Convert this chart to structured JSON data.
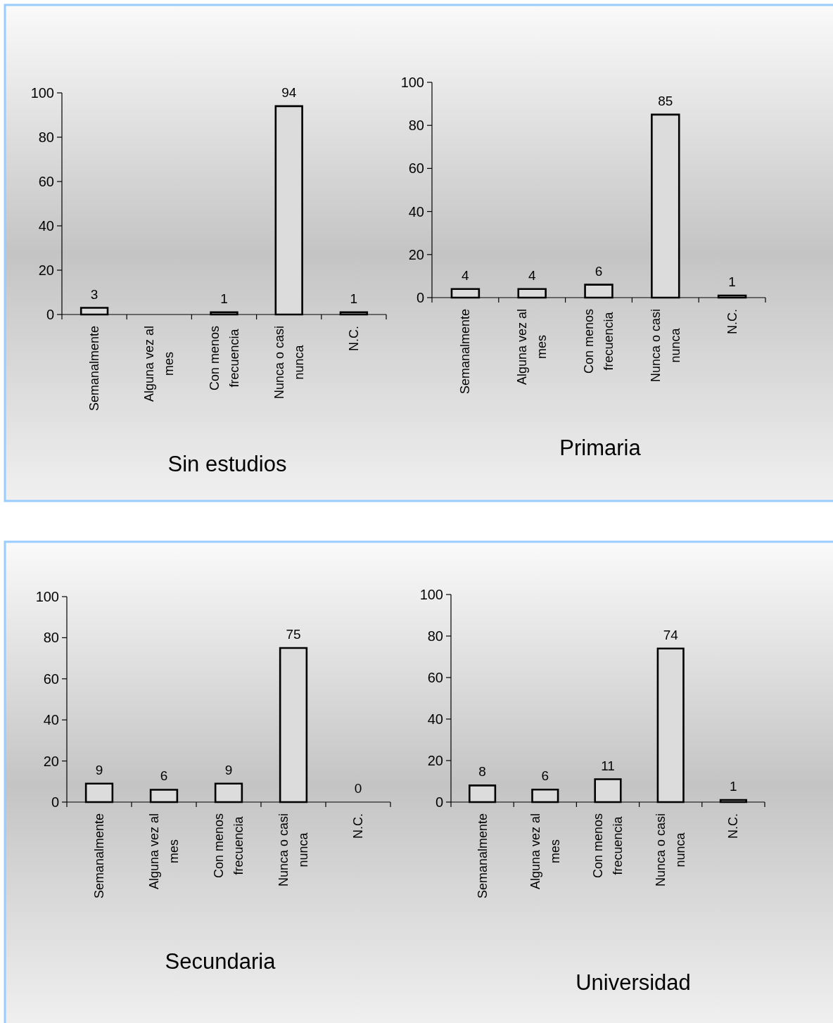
{
  "chart_data": [
    {
      "type": "bar",
      "title": "Sin estudios",
      "categories": [
        "Semanalmente",
        "Alguna vez al mes",
        "Con menos frecuencia",
        "Nunca o casi nunca",
        "N.C."
      ],
      "values": [
        3,
        null,
        1,
        94,
        1
      ],
      "color": "#dcdcdc",
      "ylim": [
        0,
        100
      ],
      "yticks": [
        0,
        20,
        40,
        60,
        80,
        100
      ],
      "data_labels": true
    },
    {
      "type": "bar",
      "title": "Primaria",
      "categories": [
        "Semanalmente",
        "Alguna vez al mes",
        "Con menos frecuencia",
        "Nunca o casi nunca",
        "N.C."
      ],
      "values": [
        4,
        4,
        6,
        85,
        1
      ],
      "color": "#dcdcdc",
      "ylim": [
        0,
        100
      ],
      "yticks": [
        0,
        20,
        40,
        60,
        80,
        100
      ],
      "data_labels": true
    },
    {
      "type": "bar",
      "title": "Secundaria",
      "categories": [
        "Semanalmente",
        "Alguna vez al mes",
        "Con menos frecuencia",
        "Nunca o casi nunca",
        "N.C."
      ],
      "values": [
        9,
        6,
        9,
        75,
        0
      ],
      "color": "#dcdcdc",
      "ylim": [
        0,
        100
      ],
      "yticks": [
        0,
        20,
        40,
        60,
        80,
        100
      ],
      "data_labels": true
    },
    {
      "type": "bar",
      "title": "Universidad",
      "categories": [
        "Semanalmente",
        "Alguna vez al mes",
        "Con menos frecuencia",
        "Nunca o casi nunca",
        "N.C."
      ],
      "values": [
        8,
        6,
        11,
        74,
        1
      ],
      "color": "#dcdcdc",
      "ylim": [
        0,
        100
      ],
      "yticks": [
        0,
        20,
        40,
        60,
        80,
        100
      ],
      "data_labels": true
    }
  ]
}
